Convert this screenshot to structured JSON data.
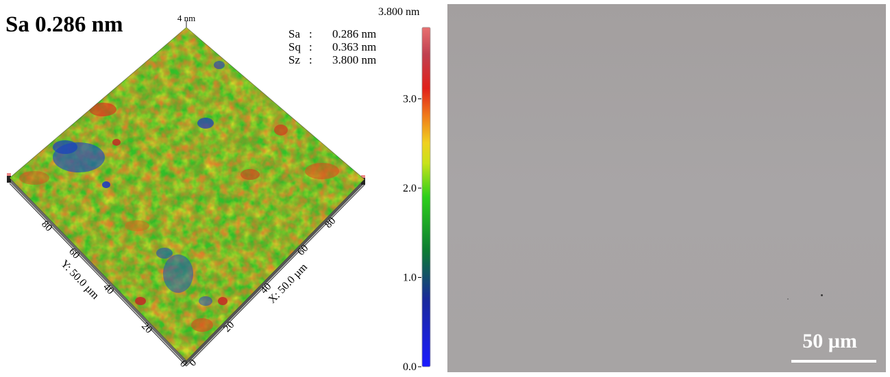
{
  "surface_map": {
    "title": "Sa 0.286 nm",
    "z_top_label": "4 nm",
    "y_axis_label": "Y: 50.0 µm",
    "x_axis_label": "X: 50.0 µm",
    "y_ticks": [
      "80",
      "60",
      "40",
      "20",
      "0"
    ],
    "x_ticks": [
      "80",
      "60",
      "40",
      "20",
      "0"
    ],
    "stats": [
      {
        "name": "Sa",
        "value": "0.286 nm"
      },
      {
        "name": "Sq",
        "value": "0.363 nm"
      },
      {
        "name": "Sz",
        "value": "3.800 nm"
      }
    ],
    "colors": {
      "green": "#2fbf24",
      "yellow": "#e2e02a",
      "orange": "#e8822a",
      "red": "#d23a1e",
      "blue": "#1f3fbf"
    }
  },
  "color_scale": {
    "max_label": "3.800 nm",
    "ticks": [
      "3.0",
      "2.0",
      "1.0",
      "0.0"
    ],
    "range": [
      0,
      3.8
    ],
    "tick_values": [
      3.0,
      2.0,
      1.0,
      0.0
    ]
  },
  "micrograph": {
    "scalebar_label": "50 µm",
    "background": "#a6a3a3"
  }
}
